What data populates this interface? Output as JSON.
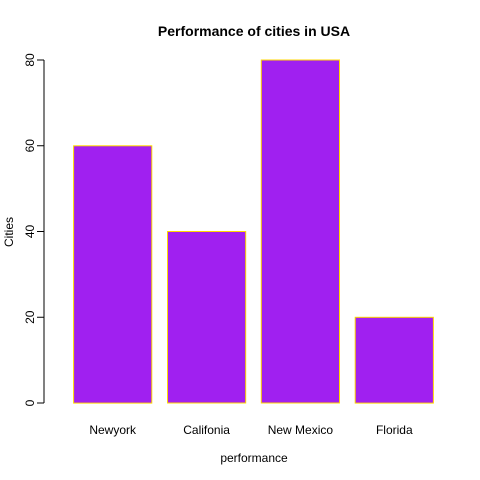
{
  "chart_data": {
    "type": "bar",
    "title": "Performance of cities in USA",
    "xlabel": "performance",
    "ylabel": "Cities",
    "categories": [
      "Newyork",
      "Califonia",
      "New Mexico",
      "Florida"
    ],
    "values": [
      60,
      40,
      80,
      20
    ],
    "ylim": [
      0,
      80
    ],
    "yticks": [
      0,
      20,
      40,
      60,
      80
    ],
    "grid": false,
    "legend": "none",
    "colors": {
      "bar_fill": "#a020f0",
      "bar_border": "#ffd700",
      "axis": "#000000"
    }
  }
}
